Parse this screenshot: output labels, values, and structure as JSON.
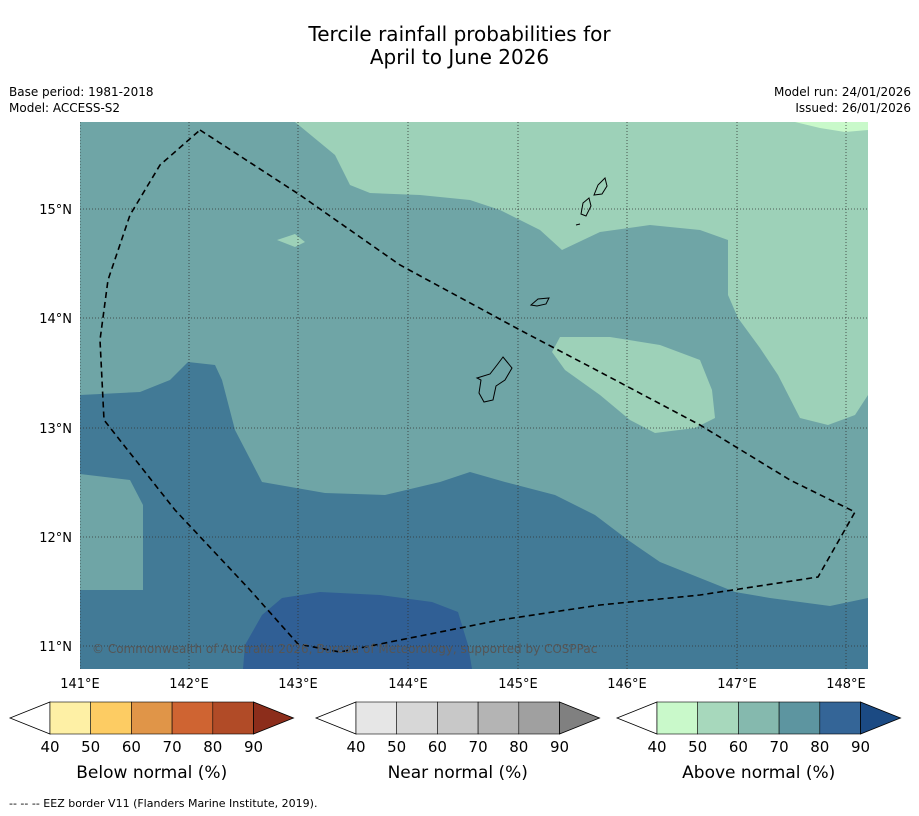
{
  "title": {
    "line1": "Tercile rainfall probabilities for",
    "line2": "April to June 2026"
  },
  "meta": {
    "base_period": "Base period: 1981-2018",
    "model": "Model: ACCESS-S2",
    "model_run": "Model run: 24/01/2026",
    "issued": "Issued: 26/01/2026"
  },
  "map": {
    "copyright": "© Commonwealth of Australia 2026, Bureau of Meteorology, supported by COSPPac",
    "lon_labels": [
      "141°E",
      "142°E",
      "143°E",
      "144°E",
      "145°E",
      "146°E",
      "147°E",
      "148°E"
    ],
    "lat_labels": [
      "15°N",
      "14°N",
      "13°N",
      "12°N",
      "11°N"
    ]
  },
  "colorbars": [
    {
      "label": "Below normal (%)",
      "ticks": [
        "40",
        "50",
        "60",
        "70",
        "80",
        "90"
      ],
      "colors": [
        "#fef0a5",
        "#fdcc63",
        "#e09548",
        "#cf6432",
        "#b14b27",
        "#8c2d1b"
      ]
    },
    {
      "label": "Near normal (%)",
      "ticks": [
        "40",
        "50",
        "60",
        "70",
        "80",
        "90"
      ],
      "colors": [
        "#e6e6e6",
        "#d7d7d7",
        "#c8c8c8",
        "#b4b4b4",
        "#a0a0a0",
        "#808080"
      ]
    },
    {
      "label": "Above normal (%)",
      "ticks": [
        "40",
        "50",
        "60",
        "70",
        "80",
        "90"
      ],
      "colors": [
        "#c9f9ca",
        "#a7d8bc",
        "#85b9ae",
        "#5d95a0",
        "#346597",
        "#1b4a83"
      ]
    }
  ],
  "field_colors": {
    "above_50": "#9dd1b8",
    "above_60": "#6fa5a6",
    "above_70": "#427a96",
    "above_80": "#305f95"
  },
  "footnote": "--  --  -- EEZ border V11 (Flanders Marine Institute, 2019)."
}
